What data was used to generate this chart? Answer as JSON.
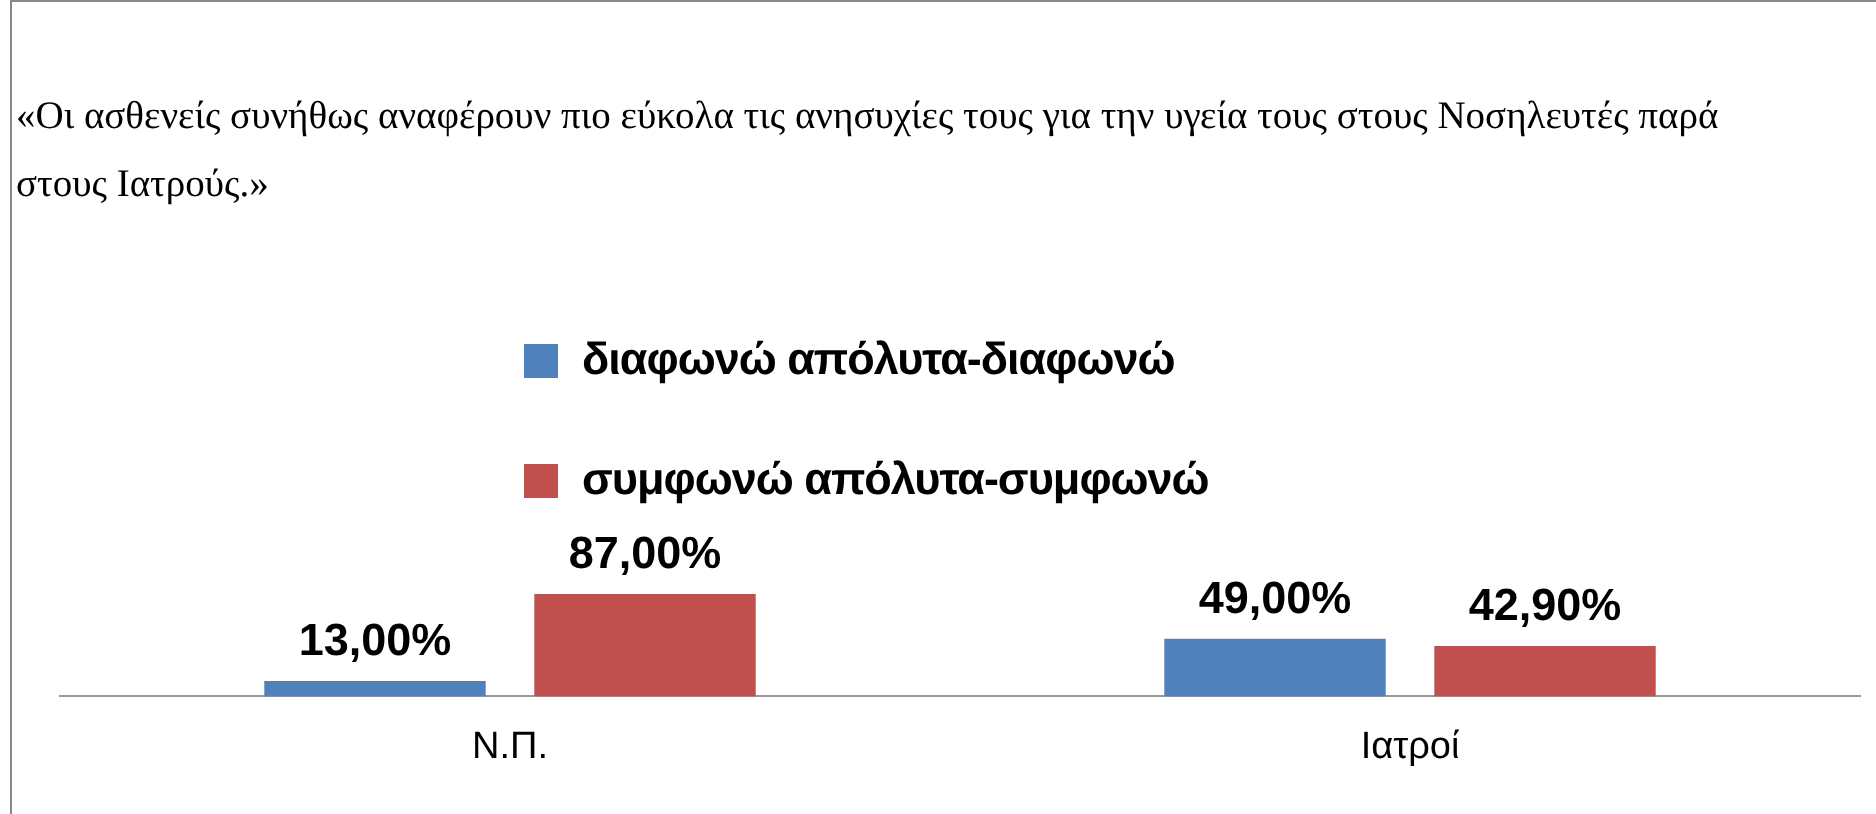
{
  "chart_data": {
    "type": "bar",
    "title": "«Οι ασθενείς συνήθως αναφέρουν πιο εύκολα τις ανησυχίες τους για την υγεία τους στους Νοσηλευτές παρά στους Ιατρούς.»",
    "categories": [
      "Ν.Π.",
      "Ιατροί"
    ],
    "series": [
      {
        "name": "διαφωνώ απόλυτα-διαφωνώ",
        "color": "#4f81bd",
        "values": [
          13,
          49
        ],
        "value_labels": [
          "13,00%",
          "49,00%"
        ]
      },
      {
        "name": "συμφωνώ απόλυτα-συμφωνώ",
        "color": "#c0504d",
        "values": [
          87,
          42.9
        ],
        "value_labels": [
          "87,00%",
          "42,90%"
        ]
      }
    ],
    "grid": false,
    "legend": "top",
    "tick_labels": "x"
  }
}
